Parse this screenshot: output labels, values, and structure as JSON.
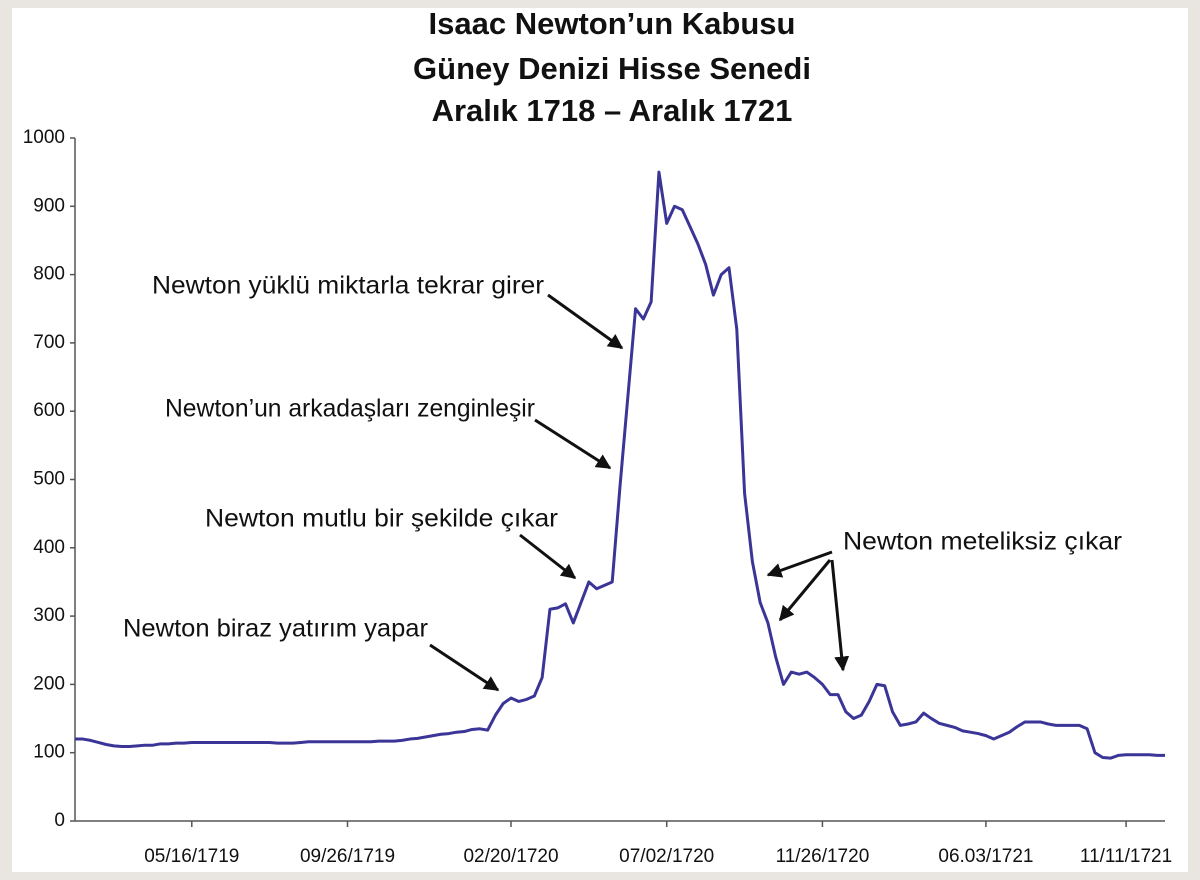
{
  "chart_data": {
    "type": "line",
    "title": "Isaac Newton’un Kabusu",
    "subtitle": [
      "Güney Denizi Hisse Senedi",
      "Aralık 1718 – Aralık 1721"
    ],
    "categories": [
      null,
      null,
      null,
      null,
      null,
      null,
      null,
      null,
      null,
      null,
      null,
      null,
      null,
      null,
      null,
      "05/16/1719",
      null,
      null,
      null,
      null,
      null,
      null,
      null,
      null,
      null,
      null,
      null,
      null,
      null,
      null,
      null,
      null,
      null,
      null,
      null,
      "09/26/1719",
      null,
      null,
      null,
      null,
      null,
      null,
      null,
      null,
      null,
      null,
      null,
      null,
      null,
      null,
      null,
      null,
      null,
      null,
      null,
      null,
      "02/20/1720",
      null,
      null,
      null,
      null,
      null,
      null,
      null,
      null,
      null,
      null,
      null,
      null,
      null,
      null,
      null,
      null,
      null,
      null,
      null,
      "07/02/1720",
      null,
      null,
      null,
      null,
      null,
      null,
      null,
      null,
      null,
      null,
      null,
      null,
      null,
      null,
      null,
      null,
      null,
      null,
      null,
      "11/26/1720",
      null,
      null,
      null,
      null,
      null,
      null,
      null,
      null,
      null,
      null,
      null,
      null,
      null,
      null,
      null,
      null,
      null,
      null,
      null,
      null,
      "06.03/1721",
      null,
      null,
      null,
      null,
      null,
      null,
      null,
      null,
      null,
      null,
      null,
      null,
      null,
      null,
      null,
      null,
      null,
      "11/11/1721",
      null,
      null,
      null,
      null,
      null
    ],
    "series": [
      {
        "name": "Güney Denizi Hisse Senedi",
        "color": "#3a3596",
        "values": [
          120,
          120,
          118,
          115,
          112,
          110,
          109,
          109,
          110,
          111,
          111,
          113,
          113,
          114,
          114,
          115,
          115,
          115,
          115,
          115,
          115,
          115,
          115,
          115,
          115,
          115,
          114,
          114,
          114,
          115,
          116,
          116,
          116,
          116,
          116,
          116,
          116,
          116,
          116,
          117,
          117,
          117,
          118,
          120,
          121,
          123,
          125,
          127,
          128,
          130,
          131,
          134,
          135,
          133,
          155,
          172,
          180,
          175,
          178,
          183,
          210,
          310,
          312,
          318,
          290,
          320,
          350,
          340,
          345,
          350,
          490,
          620,
          750,
          735,
          760,
          950,
          875,
          900,
          895,
          870,
          845,
          815,
          770,
          800,
          810,
          720,
          480,
          380,
          320,
          290,
          240,
          200,
          218,
          215,
          218,
          210,
          200,
          185,
          185,
          160,
          150,
          155,
          175,
          200,
          198,
          160,
          140,
          142,
          145,
          158,
          150,
          143,
          140,
          137,
          132,
          130,
          128,
          125,
          120,
          125,
          130,
          138,
          145,
          145,
          145,
          142,
          140,
          140,
          140,
          140,
          135,
          100,
          93,
          92,
          96,
          97,
          97,
          97,
          97,
          96,
          96
        ]
      }
    ],
    "ylim": [
      0,
      1000
    ],
    "yticks": [
      0,
      100,
      200,
      300,
      400,
      500,
      600,
      700,
      800,
      900,
      1000
    ],
    "annotations": [
      "Newton yüklü miktarla tekrar girer",
      "Newton’un arkadaşları zenginleşir",
      "Newton mutlu bir şekilde çıkar",
      "Newton biraz yatırım yapar",
      "Newton meteliksiz çıkar"
    ]
  }
}
